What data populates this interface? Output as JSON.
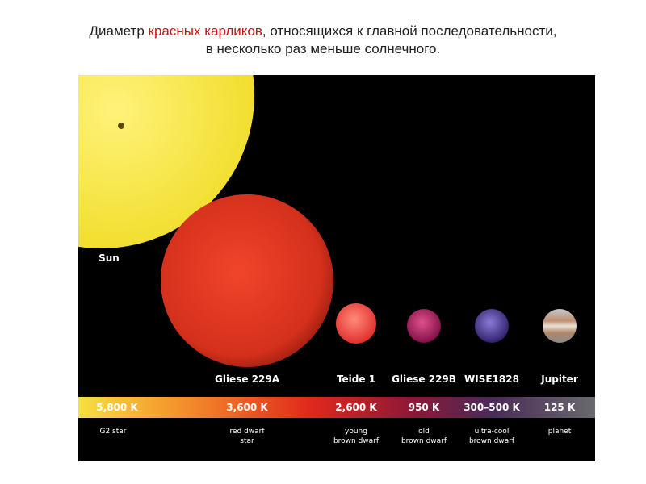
{
  "header": {
    "line1": {
      "before": "Диаметр ",
      "highlight": "красных карликов",
      "after": ", относящихся к главной последовательности,"
    },
    "line2": "в несколько раз меньше солнечного."
  },
  "objects": [
    {
      "name": "Sun",
      "temperature": "5,800 K",
      "kind": [
        "G2 star"
      ]
    },
    {
      "name": "Gliese 229A",
      "temperature": "3,600 K",
      "kind": [
        "red dwarf",
        "star"
      ]
    },
    {
      "name": "Teide 1",
      "temperature": "2,600 K",
      "kind": [
        "young",
        "brown dwarf"
      ]
    },
    {
      "name": "Gliese 229B",
      "temperature": "950 K",
      "kind": [
        "old",
        "brown dwarf"
      ]
    },
    {
      "name": "WISE1828",
      "temperature": "300–500 K",
      "kind": [
        "ultra-cool",
        "brown dwarf"
      ]
    },
    {
      "name": "Jupiter",
      "temperature": "125 K",
      "kind": [
        "planet"
      ]
    }
  ]
}
